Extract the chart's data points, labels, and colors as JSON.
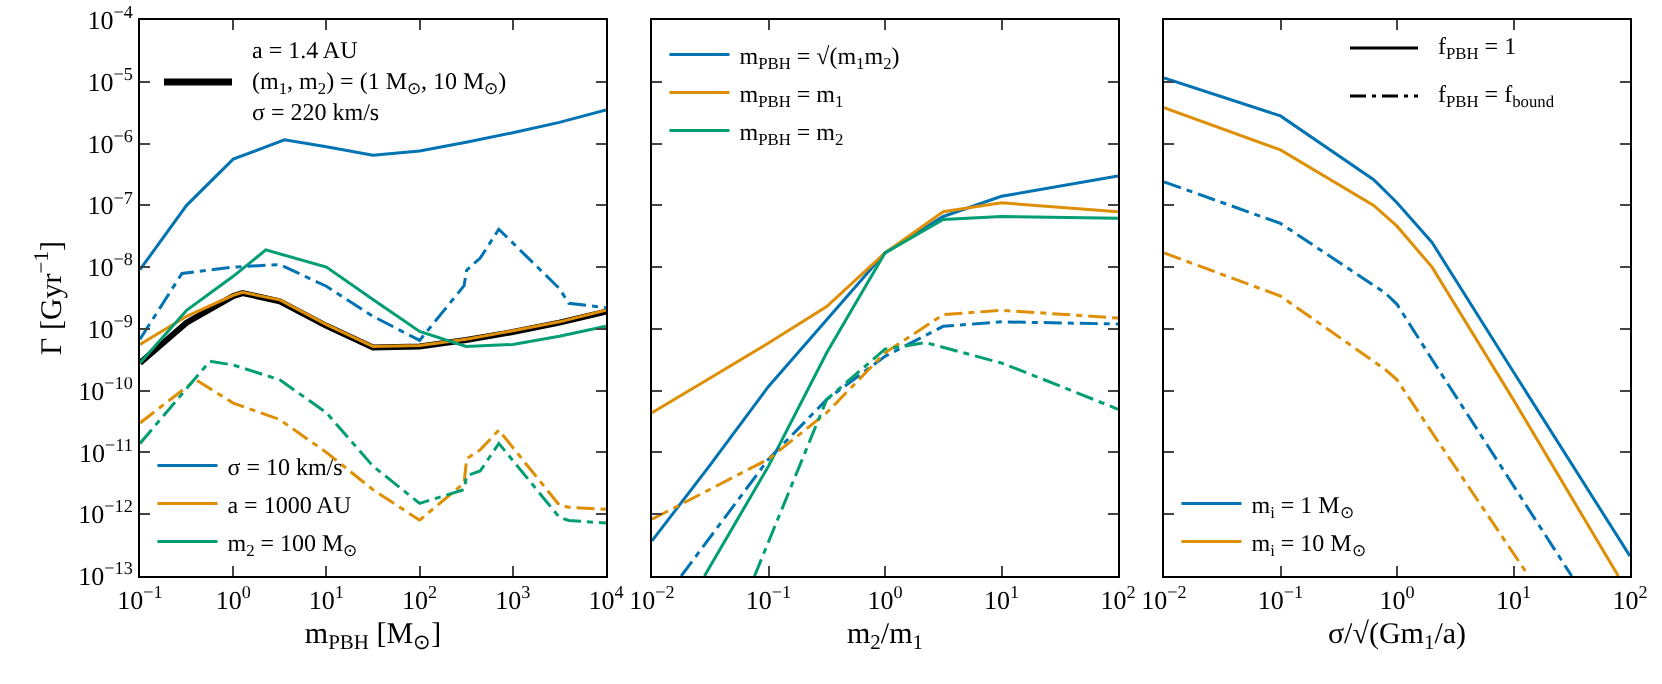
{
  "chart_data": [
    {
      "type": "line",
      "annotations": [
        "a = 1.4 AU\n(m$_{1}$, m$_{2}$) = (1 M$_{⊙}$, 10 M$_{⊙}$)\nσ = 220 km/s"
      ],
      "xlabel": "m$_{PBH}$ [M$_{⊙}$]",
      "ylabel": "Γ [Gyr$^{−1}$]",
      "log": "xy",
      "legend": "bottom left",
      "grid": false,
      "xlim": [
        0.1,
        10000
      ],
      "xticks": [
        {
          "value": 0.1,
          "label": "10$^{−1}$"
        },
        {
          "value": 1,
          "label": "10$^{0}$"
        },
        {
          "value": 10,
          "label": "10$^{1}$"
        },
        {
          "value": 100,
          "label": "10$^{2}$"
        },
        {
          "value": 1000,
          "label": "10$^{3}$"
        },
        {
          "value": 10000,
          "label": "10$^{4}$"
        }
      ],
      "ylim": [
        1e-13,
        0.0001
      ],
      "yticks": [
        {
          "value": 1e-13,
          "label": "10$^{−13}$"
        },
        {
          "value": 1e-12,
          "label": "10$^{−12}$"
        },
        {
          "value": 1e-11,
          "label": "10$^{−11}$"
        },
        {
          "value": 1e-10,
          "label": "10$^{−10}$"
        },
        {
          "value": 1e-09,
          "label": "10$^{−9}$"
        },
        {
          "value": 1e-08,
          "label": "10$^{−8}$"
        },
        {
          "value": 1e-07,
          "label": "10$^{−7}$"
        },
        {
          "value": 1e-06,
          "label": "10$^{−6}$"
        },
        {
          "value": 1e-05,
          "label": "10$^{−5}$"
        },
        {
          "value": 0.0001,
          "label": "10$^{−4}$"
        }
      ],
      "series": [
        {
          "color": "#000000",
          "line_style": "solid",
          "x": [
            0.1,
            0.316,
            1,
            1.26,
            3.16,
            10,
            31.6,
            100,
            316,
            1000,
            3160,
            10000
          ],
          "values": [
            2.8e-10,
            1.26e-09,
            3.4e-09,
            3.8e-09,
            2.8e-09,
            1.12e-09,
            5e-10,
            5.2e-10,
            6.6e-10,
            8.9e-10,
            1.26e-09,
            1.9e-09
          ]
        },
        {
          "name": "σ = 10 km/s",
          "color": "#0173b2",
          "line_style": "solid",
          "x": [
            0.1,
            0.316,
            1,
            3.55,
            10,
            31.6,
            100,
            316,
            1000,
            3160,
            10000
          ],
          "values": [
            9.1e-09,
            1e-07,
            5.6e-07,
            1.15e-06,
            8.9e-07,
            6.5e-07,
            7.6e-07,
            1.05e-06,
            1.5e-06,
            2.2e-06,
            3.5e-06
          ]
        },
        {
          "name": "a = 1000 AU",
          "color": "#de8f05",
          "line_style": "solid",
          "x": [
            0.1,
            0.316,
            1,
            1.26,
            3.16,
            10,
            31.6,
            100,
            316,
            1000,
            3160,
            10000
          ],
          "values": [
            5.6e-10,
            1.6e-09,
            3.5e-09,
            3.9e-09,
            2.95e-09,
            1.17e-09,
            5.2e-10,
            5.4e-10,
            6.8e-10,
            9.3e-10,
            1.3e-09,
            2e-09
          ]
        },
        {
          "name": "m$_{2}$ = 100 M$_{⊙}$",
          "color": "#029e73",
          "line_style": "solid",
          "x": [
            0.1,
            0.316,
            1,
            2.24,
            10,
            31.6,
            100,
            316,
            1000,
            3160,
            10000
          ],
          "values": [
            2.8e-10,
            2e-09,
            7.1e-09,
            1.9e-08,
            1e-08,
            3e-09,
            9.1e-10,
            5.2e-10,
            5.6e-10,
            7.6e-10,
            1.1e-09
          ]
        },
        {
          "color": "#0173b2",
          "line_style": "dashdot",
          "x": [
            0.1,
            0.282,
            1,
            3.16,
            10,
            31.6,
            100,
            300,
            320,
            447,
            708,
            3160,
            3980,
            10000
          ],
          "values": [
            6.8e-10,
            7.9e-09,
            1e-08,
            1.1e-08,
            4.9e-09,
            1.6e-09,
            6.5e-10,
            5e-09,
            8.9e-09,
            1.4e-08,
            4.1e-08,
            4.5e-09,
            2.6e-09,
            2.2e-09
          ]
        },
        {
          "color": "#de8f05",
          "line_style": "dashdot",
          "x": [
            0.1,
            0.398,
            1,
            3.16,
            10,
            31.6,
            100,
            300,
            320,
            447,
            708,
            3160,
            3980,
            10000
          ],
          "values": [
            3e-11,
            1.5e-10,
            6.3e-11,
            3.4e-11,
            1e-11,
            2.5e-12,
            8e-13,
            3.2e-12,
            7.9e-12,
            1.1e-11,
            2.3e-11,
            1.4e-12,
            1.3e-12,
            1.2e-12
          ]
        },
        {
          "color": "#029e73",
          "line_style": "dashdot",
          "x": [
            0.1,
            0.562,
            1,
            3.16,
            10,
            31.6,
            100,
            300,
            320,
            447,
            708,
            3160,
            3980,
            10000
          ],
          "values": [
            1.4e-11,
            3e-10,
            2.6e-10,
            1.5e-10,
            4.4e-11,
            6e-12,
            1.5e-12,
            2.5e-12,
            4.2e-12,
            5e-12,
            1.4e-11,
            8.9e-13,
            7.9e-13,
            7.2e-13
          ]
        }
      ]
    },
    {
      "type": "line",
      "xlabel": "m$_{2}$/m$_{1}$",
      "log": "xy",
      "legend": "top left",
      "grid": false,
      "tick_labels": "x",
      "xlim": [
        0.01,
        100
      ],
      "xticks": [
        {
          "value": 0.01,
          "label": "10$^{−2}$"
        },
        {
          "value": 0.1,
          "label": "10$^{−1}$"
        },
        {
          "value": 1,
          "label": "10$^{0}$"
        },
        {
          "value": 10,
          "label": "10$^{1}$"
        },
        {
          "value": 100,
          "label": "10$^{2}$"
        }
      ],
      "ylim": [
        1e-13,
        0.0001
      ],
      "series": [
        {
          "name": "m$_{PBH}$ = √(m$_{1}$m$_{2}$)",
          "color": "#0173b2",
          "line_style": "solid",
          "x": [
            0.01,
            0.0316,
            0.1,
            0.316,
            1,
            3.16,
            10,
            100
          ],
          "values": [
            3.7e-13,
            6.3e-12,
            1.17e-10,
            1.4e-09,
            1.7e-08,
            6.6e-08,
            1.4e-07,
            3e-07
          ]
        },
        {
          "name": "m$_{PBH}$ = m$_{1}$",
          "color": "#de8f05",
          "line_style": "solid",
          "x": [
            0.01,
            0.0316,
            0.1,
            0.316,
            1,
            3.16,
            10,
            100
          ],
          "values": [
            4.4e-11,
            1.6e-10,
            5.9e-10,
            2.3e-09,
            1.7e-08,
            7.9e-08,
            1.1e-07,
            7.9e-08
          ]
        },
        {
          "name": "m$_{PBH}$ = m$_{2}$",
          "color": "#029e73",
          "line_style": "solid",
          "x": [
            0.0282,
            0.1,
            0.316,
            1,
            3.16,
            10,
            100
          ],
          "values": [
            1e-13,
            6e-12,
            4.1e-10,
            1.7e-08,
            5.9e-08,
            6.6e-08,
            6.2e-08
          ]
        },
        {
          "color": "#0173b2",
          "line_style": "dashdot",
          "x": [
            0.0178,
            0.1,
            0.316,
            1,
            3.16,
            10,
            100
          ],
          "values": [
            1e-13,
            7.8e-12,
            7.2e-11,
            3.6e-10,
            1.1e-09,
            1.3e-09,
            1.2e-09
          ]
        },
        {
          "color": "#de8f05",
          "line_style": "dashdot",
          "x": [
            0.01,
            0.1,
            0.316,
            1,
            3.16,
            10,
            100
          ],
          "values": [
            8.3e-13,
            7.8e-12,
            4.4e-11,
            4.1e-10,
            1.7e-09,
            2e-09,
            1.5e-09
          ]
        },
        {
          "color": "#029e73",
          "line_style": "dashdot",
          "x": [
            0.0759,
            0.316,
            1,
            2.24,
            10,
            31.6,
            100
          ],
          "values": [
            1e-13,
            7.2e-11,
            4.7e-10,
            6e-10,
            2.8e-10,
            1.2e-10,
            5e-11
          ]
        }
      ]
    },
    {
      "type": "line",
      "annotations": [
        "f$_{PBH}$ = 1",
        "f$_{PBH}$ = f$_{bound}$"
      ],
      "xlabel": "σ/√(Gm$_{1}$/a)",
      "log": "xy",
      "legend": "bottom left",
      "grid": false,
      "tick_labels": "x",
      "xlim": [
        0.01,
        100
      ],
      "xticks": [
        {
          "value": 0.01,
          "label": "10$^{−2}$"
        },
        {
          "value": 0.1,
          "label": "10$^{−1}$"
        },
        {
          "value": 1,
          "label": "10$^{0}$"
        },
        {
          "value": 10,
          "label": "10$^{1}$"
        },
        {
          "value": 100,
          "label": "10$^{2}$"
        }
      ],
      "ylim": [
        1e-13,
        0.0001
      ],
      "series": [
        {
          "name": "m$_{i}$ = 1 M$_{⊙}$",
          "color": "#0173b2",
          "line_style": "solid",
          "x": [
            0.01,
            0.1,
            0.631,
            1,
            2,
            10,
            100
          ],
          "values": [
            1.15e-05,
            2.8e-06,
            2.6e-07,
            1.1e-07,
            2.5e-08,
            2e-10,
            2.1e-13
          ]
        },
        {
          "name": "m$_{i}$ = 10 M$_{⊙}$",
          "color": "#de8f05",
          "line_style": "solid",
          "x": [
            0.01,
            0.1,
            0.631,
            1,
            2,
            10,
            79.4
          ],
          "values": [
            3.8e-06,
            7.9e-07,
            1e-07,
            4.6e-08,
            1e-08,
            7.1e-11,
            1e-13
          ]
        },
        {
          "color": "#0173b2",
          "line_style": "dashdot",
          "x": [
            0.01,
            0.1,
            0.794,
            1,
            2,
            31.6
          ],
          "values": [
            2.4e-07,
            5.1e-08,
            3.8e-09,
            2.5e-09,
            3.2e-10,
            1e-13
          ]
        },
        {
          "color": "#de8f05",
          "line_style": "dashdot",
          "x": [
            0.01,
            0.1,
            0.794,
            1,
            2,
            13.5
          ],
          "values": [
            1.7e-08,
            3.4e-09,
            2.2e-10,
            1.5e-10,
            2.1e-11,
            1e-13
          ]
        }
      ]
    }
  ]
}
